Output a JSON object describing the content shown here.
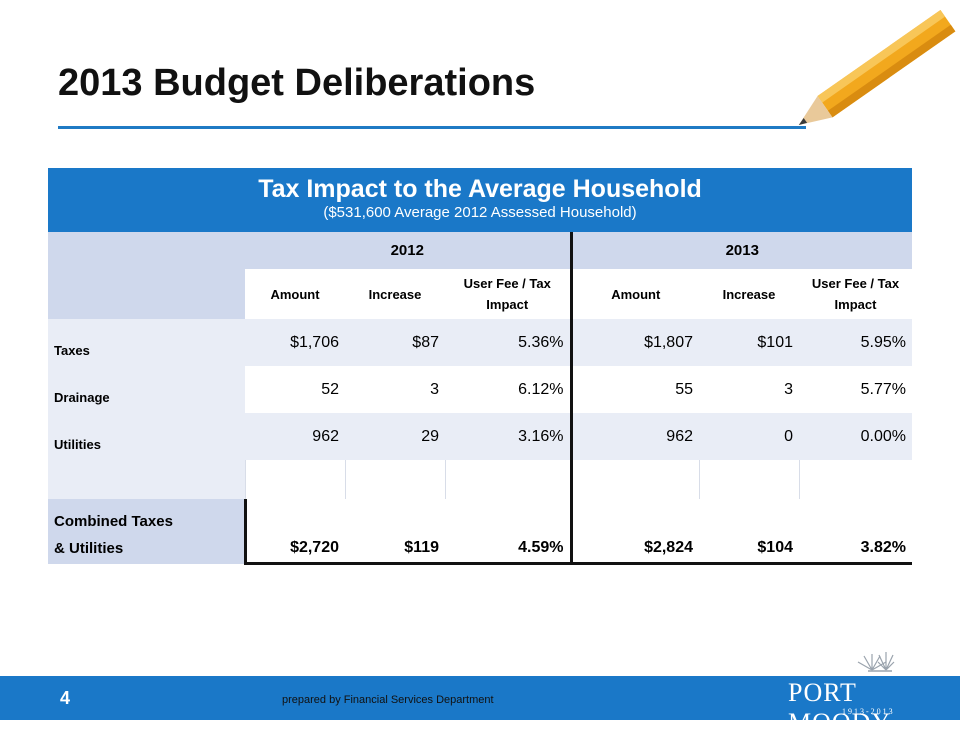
{
  "slide": {
    "title": "2013 Budget Deliberations",
    "page_number": "4",
    "prepared_by": "prepared by Financial Services Department"
  },
  "table": {
    "title": "Tax Impact to the Average Household",
    "subtitle": "($531,600 Average 2012 Assessed Household)",
    "years": [
      "2012",
      "2013"
    ],
    "columns": [
      "Amount",
      "Increase",
      "User Fee / Tax Impact",
      "Amount",
      "Increase",
      "User Fee / Tax Impact"
    ],
    "rows": [
      {
        "label": "Taxes",
        "values": [
          "$1,706",
          "$87",
          "5.36%",
          "$1,807",
          "$101",
          "5.95%"
        ]
      },
      {
        "label": "Drainage",
        "values": [
          "52",
          "3",
          "6.12%",
          "55",
          "3",
          "5.77%"
        ]
      },
      {
        "label": "Utilities",
        "values": [
          "962",
          "29",
          "3.16%",
          "962",
          "0",
          "0.00%"
        ]
      }
    ],
    "total": {
      "label_line1": "Combined Taxes",
      "label_line2": "& Utilities",
      "values": [
        "$2,720",
        "$119",
        "4.59%",
        "$2,824",
        "$104",
        "3.82%"
      ]
    }
  },
  "logo": {
    "text": "PORT MOODY",
    "years": "1913-2013"
  },
  "colors": {
    "accent_blue": "#1a78c8",
    "header_shade": "#cfd8ec",
    "row_shade": "#e9edf6"
  }
}
